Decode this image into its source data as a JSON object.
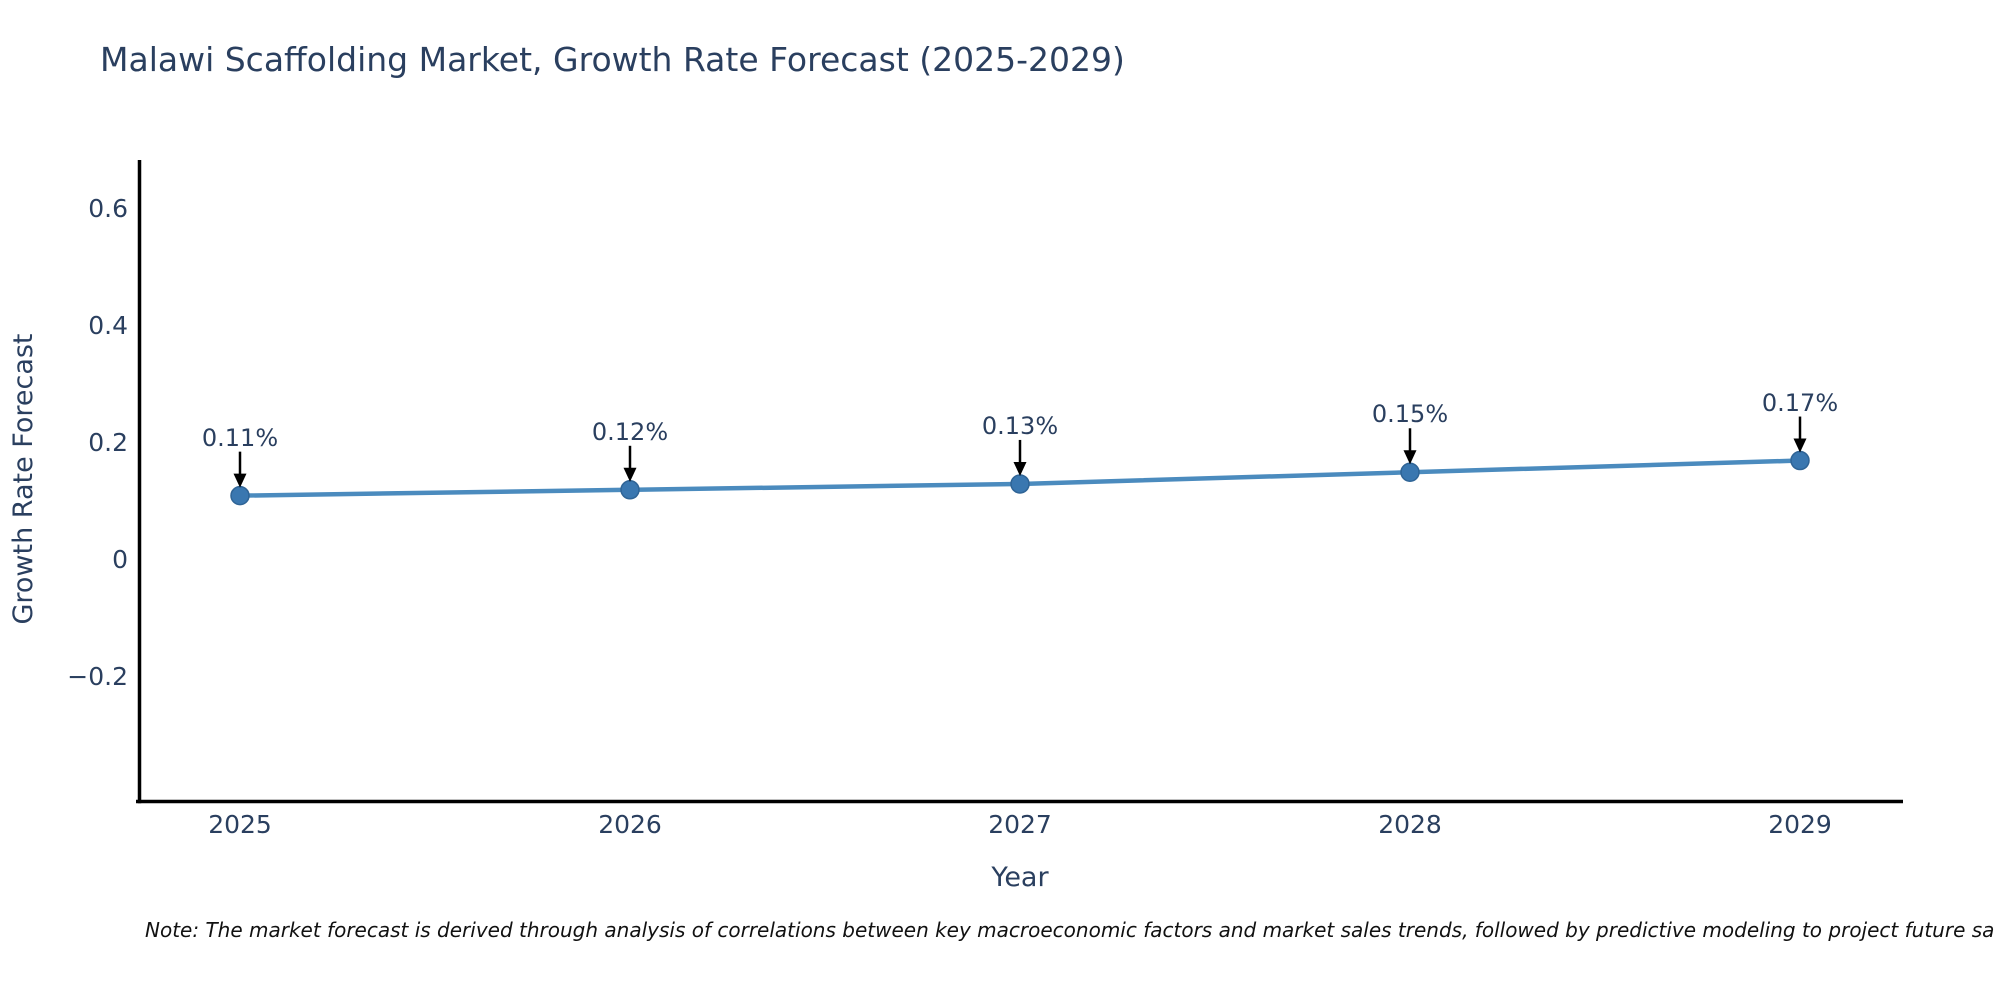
{
  "title": "Malawi Scaffolding Market, Growth Rate Forecast (2025-2029)",
  "note": "Note: The market forecast is derived through analysis of correlations between key macroeconomic factors and market sales trends, followed by predictive modeling to project future sa",
  "chart_data": {
    "type": "line",
    "x": [
      2025,
      2026,
      2027,
      2028,
      2029
    ],
    "values": [
      0.11,
      0.12,
      0.13,
      0.15,
      0.17
    ],
    "point_labels": [
      "0.11%",
      "0.12%",
      "0.13%",
      "0.15%",
      "0.17%"
    ],
    "series_name": "Growth Rate Forecast",
    "title": "Malawi Scaffolding Market, Growth Rate Forecast (2025-2029)",
    "xlabel": "Year",
    "ylabel": "Growth Rate Forecast",
    "xtick_labels": [
      "2025",
      "2026",
      "2027",
      "2028",
      "2029"
    ],
    "yticks": [
      0.6,
      0.4,
      0.2,
      0,
      -0.2
    ],
    "ytick_labels": [
      "0.6",
      "0.4",
      "0.2",
      "0",
      "−0.2"
    ],
    "ylim": [
      -0.41,
      0.67
    ],
    "grid": false,
    "legend": "none",
    "annotations_style": "black-down-arrows",
    "colors": {
      "line": "#4b8bbe",
      "marker": "#3a77b0",
      "marker_edge": "#2f6496",
      "arrow": "#000000",
      "axis_line": "#000000",
      "text": "#2a3f5f",
      "note_text": "#111111"
    }
  }
}
